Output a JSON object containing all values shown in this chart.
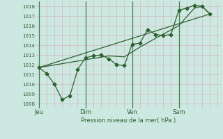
{
  "title": "Pression niveau de la mer( hPa )",
  "ylabel_ticks": [
    1008,
    1009,
    1010,
    1011,
    1012,
    1013,
    1014,
    1015,
    1016,
    1017,
    1018
  ],
  "ylim": [
    1007.5,
    1018.5
  ],
  "background_color": "#cce8e0",
  "grid_color_h": "#d4b8c0",
  "grid_color_v": "#d4b8c0",
  "day_line_color": "#4a7a50",
  "line_color": "#2d6030",
  "x_tick_labels": [
    "Jeu",
    "Dim",
    "Ven",
    "Sam"
  ],
  "x_tick_positions": [
    0,
    3,
    6,
    9
  ],
  "xlim": [
    -0.2,
    11.7
  ],
  "series0_x": [
    0.0,
    0.5,
    1.0,
    1.5,
    2.0,
    2.5,
    3.0,
    3.5,
    4.0,
    4.5,
    5.0,
    5.5,
    6.0,
    6.5,
    7.0,
    7.5,
    8.0,
    8.5,
    9.0,
    9.5,
    10.0,
    10.5,
    11.0
  ],
  "series0_y": [
    1011.7,
    1011.1,
    1010.0,
    1008.4,
    1008.8,
    1011.5,
    1012.7,
    1012.9,
    1013.0,
    1012.6,
    1012.0,
    1011.9,
    1014.1,
    1014.2,
    1015.6,
    1015.1,
    1015.0,
    1015.1,
    1017.6,
    1017.8,
    1018.1,
    1018.0,
    1017.2
  ],
  "series1_x": [
    0.0,
    3.0,
    4.5,
    5.5,
    6.5,
    7.5,
    9.0,
    10.0,
    10.5,
    11.0
  ],
  "series1_y": [
    1011.7,
    1012.5,
    1012.9,
    1012.8,
    1013.8,
    1014.7,
    1016.0,
    1017.8,
    1018.0,
    1017.2
  ],
  "series2_x": [
    0.0,
    11.0
  ],
  "series2_y": [
    1011.7,
    1017.2
  ]
}
